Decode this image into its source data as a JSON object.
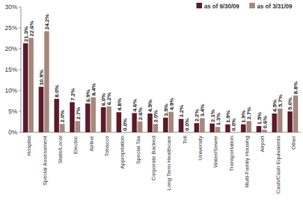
{
  "chart_data": {
    "type": "bar",
    "categories": [
      "Hospital",
      "Special Assessment",
      "State/Local",
      "Electric",
      "Airline",
      "Tobacco",
      "Appropriation",
      "Special Tax",
      "Corporate Backed",
      "Long Term Healthcare",
      "Toll",
      "University",
      "Water/Sewer",
      "Transportation",
      "Multi-Family Housing",
      "Airport",
      "Cash/Cash Equivalents",
      "Other"
    ],
    "series": [
      {
        "name": "as of 9/30/09",
        "color": "#5c1a2b",
        "values": [
          21.3,
          10.9,
          8.0,
          7.2,
          6.9,
          6.0,
          4.8,
          4.6,
          4.5,
          3.5,
          3.2,
          2.2,
          2.1,
          1.9,
          1.9,
          1.5,
          4.5,
          5.0
        ],
        "value_labels": [
          "21.3%",
          "10.9%",
          "8.0%",
          "7.2%",
          "6.9%",
          "6.0%",
          "4.8%",
          "4.6%",
          "4.5%",
          "3.5%",
          "3.2%",
          "2.2%",
          "2.1%",
          "1.9%",
          "1.9%",
          "1.5%",
          "4.5%",
          "5.0%"
        ]
      },
      {
        "name": "as of 3/31/09",
        "color": "#a6877a",
        "values": [
          22.6,
          24.2,
          2.0,
          2.7,
          8.4,
          6.2,
          0.0,
          2.6,
          2.0,
          4.9,
          0.0,
          3.4,
          1.3,
          0.0,
          2.7,
          0.6,
          5.7,
          8.8
        ],
        "value_labels": [
          "22.6%",
          "24.2%",
          "2.0%",
          "2.7%",
          "8.4%",
          "6.2%",
          "0.0%",
          "2.6%",
          "2.0%",
          "4.9%",
          "0.0%",
          "3.4%",
          "1.3%",
          "0.0%",
          "2.7%",
          "0.6%",
          "5.7%",
          "8.8%"
        ]
      }
    ],
    "ylim": [
      0,
      30
    ],
    "yticks": [
      {
        "value": 0,
        "label": "0%"
      },
      {
        "value": 5,
        "label": "5%"
      },
      {
        "value": 10,
        "label": "10%"
      },
      {
        "value": 15,
        "label": "15%"
      },
      {
        "value": 20,
        "label": "20%"
      },
      {
        "value": 25,
        "label": "25%"
      },
      {
        "value": 30,
        "label": "30%"
      }
    ],
    "grid": false,
    "legend": "top-right",
    "data_labels": true
  }
}
